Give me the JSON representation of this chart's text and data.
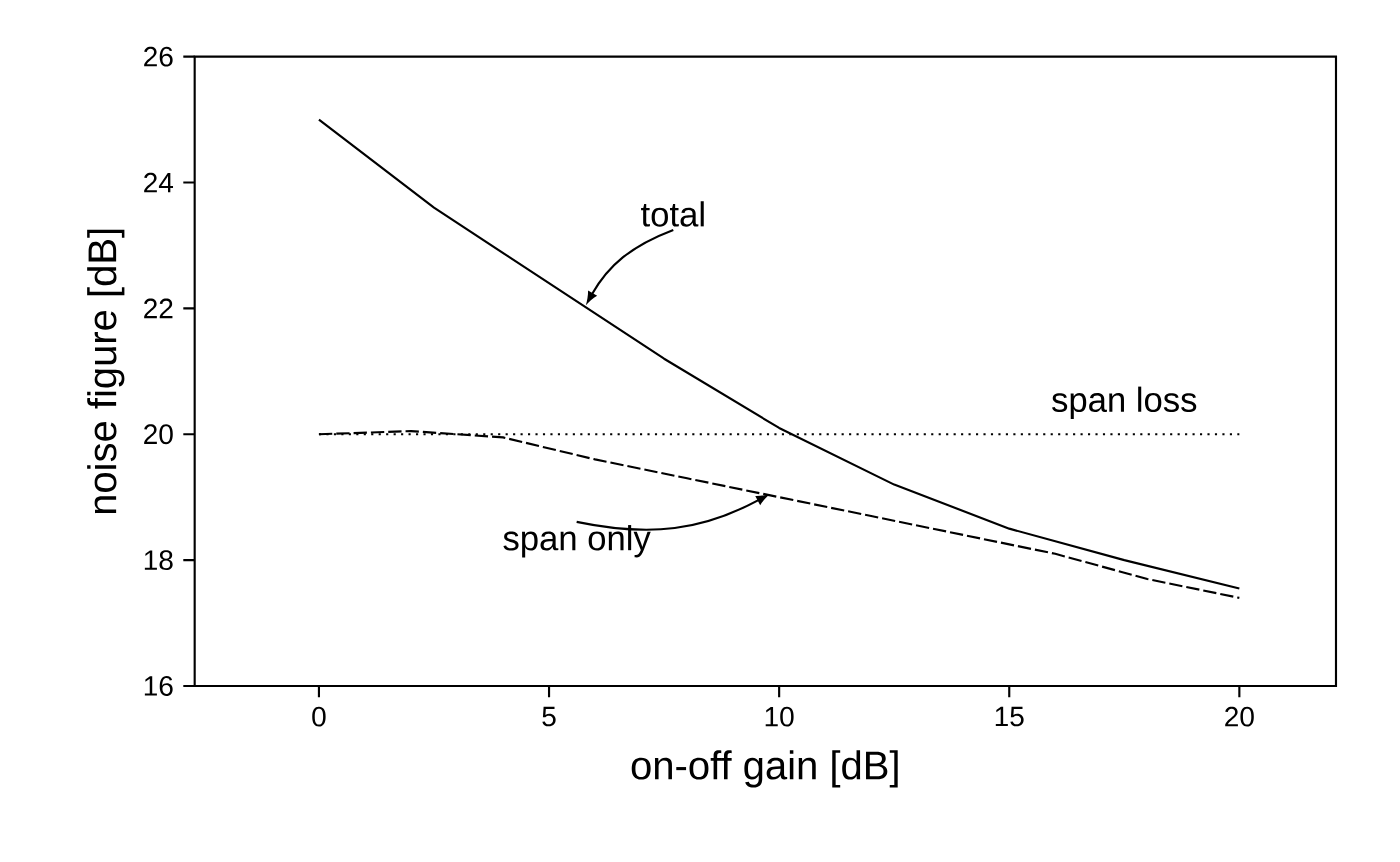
{
  "chart_data": {
    "type": "line",
    "xlabel": "on-off gain  [dB]",
    "ylabel": "noise figure [dB]",
    "xlim": [
      -2.7,
      22.1
    ],
    "ylim": [
      16,
      26
    ],
    "xticks": [
      0,
      5,
      10,
      15,
      20
    ],
    "yticks": [
      16,
      18,
      20,
      22,
      24,
      26
    ],
    "grid": false,
    "legend": false,
    "series": [
      {
        "name": "total",
        "color": "#000000",
        "line_style": "solid",
        "x": [
          0,
          2.5,
          5,
          7.5,
          10,
          12.5,
          15,
          17.5,
          20
        ],
        "values": [
          25.0,
          23.6,
          22.4,
          21.2,
          20.1,
          19.2,
          18.5,
          18.0,
          17.55
        ]
      },
      {
        "name": "span loss",
        "color": "#000000",
        "line_style": "dotted",
        "x": [
          0,
          20
        ],
        "values": [
          20,
          20
        ]
      },
      {
        "name": "span only",
        "color": "#000000",
        "line_style": "dashed",
        "x": [
          0,
          2,
          4,
          6,
          8,
          10,
          12,
          14,
          16,
          18,
          20
        ],
        "values": [
          20.0,
          20.05,
          19.95,
          19.6,
          19.3,
          19.0,
          18.7,
          18.4,
          18.1,
          17.7,
          17.4
        ]
      }
    ]
  }
}
